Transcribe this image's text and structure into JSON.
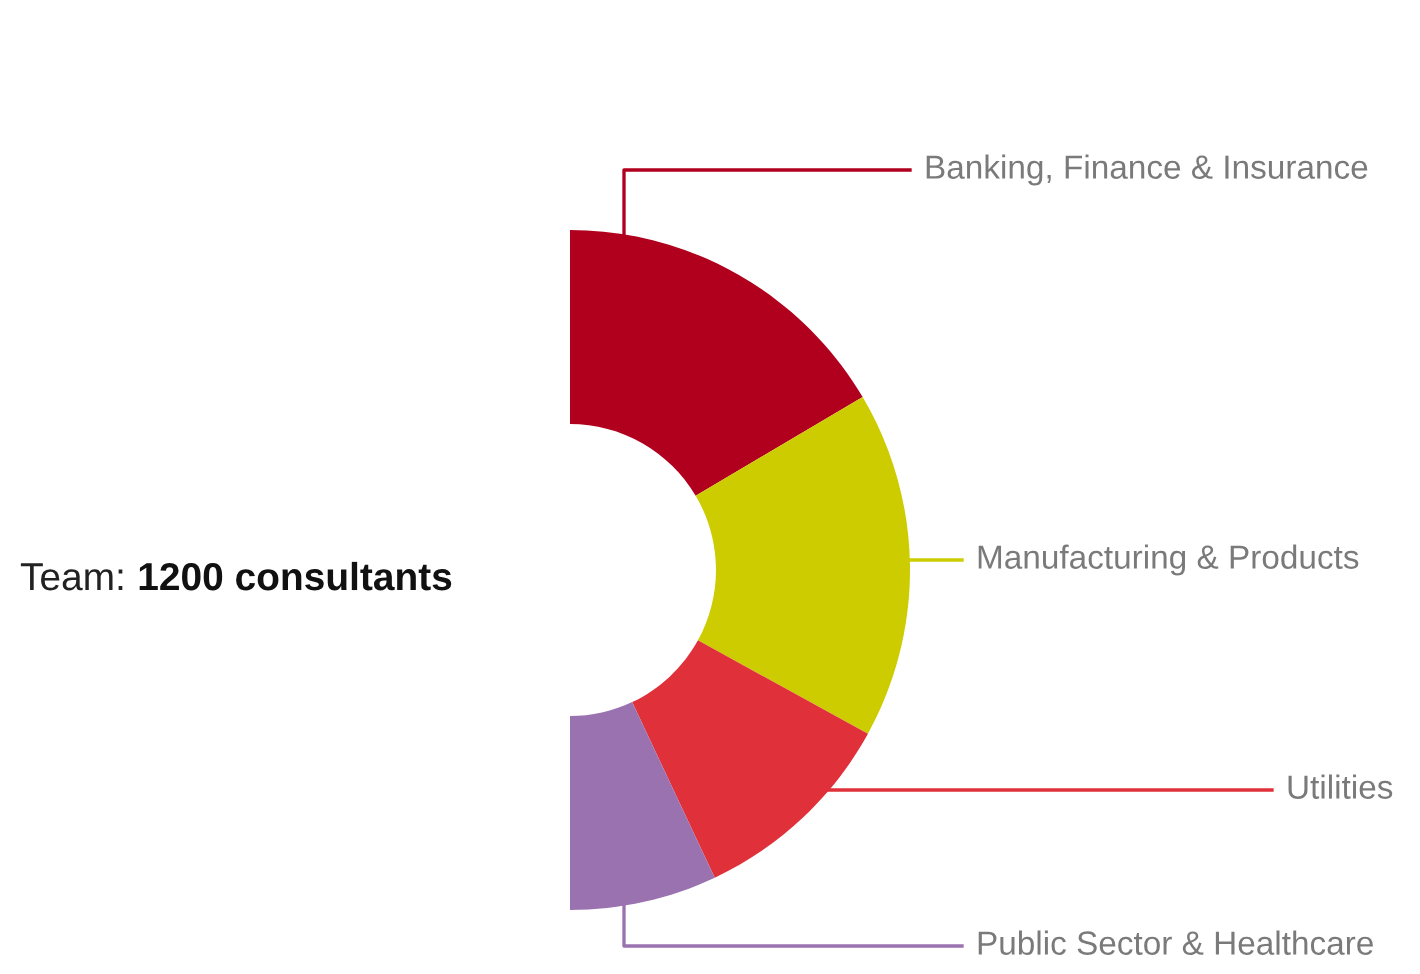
{
  "chart_data": {
    "type": "donut",
    "categories": [
      "Banking, Finance & Insurance",
      "Manufacturing & Products",
      "Utilities",
      "Public Sector & Healthcare"
    ],
    "values": [
      33,
      33,
      20,
      14
    ],
    "colors": [
      "#b0001e",
      "#cccc00",
      "#e0303a",
      "#9b72b0"
    ],
    "annotations": [
      "Team: 1200 consultants"
    ]
  }
}
